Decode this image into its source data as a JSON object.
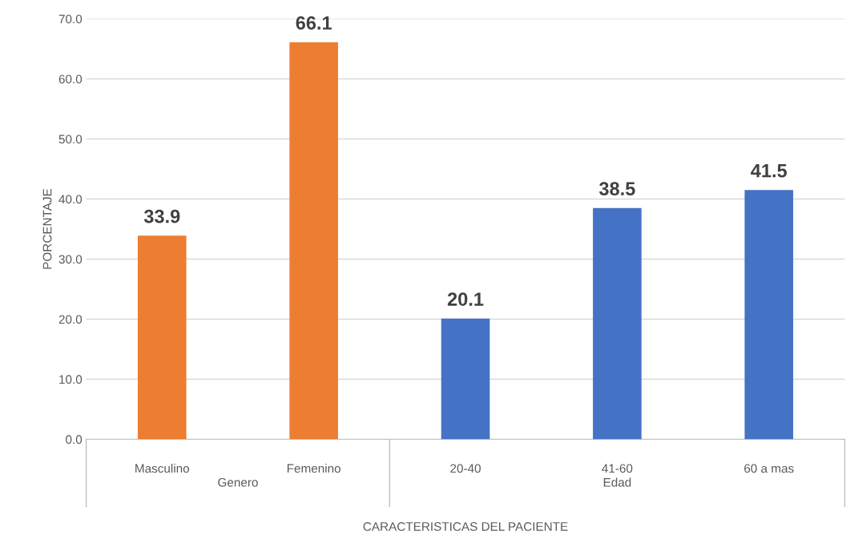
{
  "chart_data": {
    "type": "bar",
    "xlabel": "CARACTERISTICAS DEL PACIENTE",
    "ylabel": "PORCENTAJE",
    "categories": [
      "Masculino",
      "Femenino",
      "20-40",
      "41-60",
      "60 a mas"
    ],
    "values": [
      33.9,
      66.1,
      20.1,
      38.5,
      41.5
    ],
    "colors": [
      "#ed7d31",
      "#ed7d31",
      "#4472c4",
      "#4472c4",
      "#4472c4"
    ],
    "annotations": [
      "Genero",
      "Edad"
    ],
    "data_labels": true,
    "ylim": [
      0,
      70
    ],
    "yticks": [
      {
        "value": 0,
        "label": "0.0"
      },
      {
        "value": 10,
        "label": "10.0"
      },
      {
        "value": 20,
        "label": "20.0"
      },
      {
        "value": 30,
        "label": "30.0"
      },
      {
        "value": 40,
        "label": "40.0"
      },
      {
        "value": 50,
        "label": "50.0"
      },
      {
        "value": 60,
        "label": "60.0"
      },
      {
        "value": 70,
        "label": "70.0"
      }
    ],
    "grid": "y"
  }
}
